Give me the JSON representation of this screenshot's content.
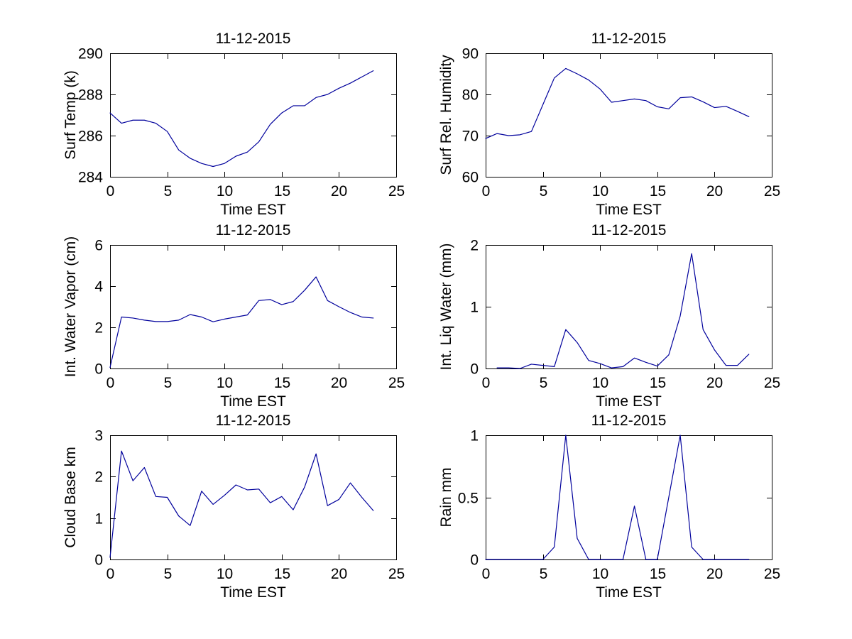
{
  "figure": {
    "background": "#ffffff",
    "line_color": "#00009c",
    "axis_color": "#000000",
    "text_color": "#000000"
  },
  "chart_data": [
    {
      "id": "surf-temp",
      "type": "line",
      "title": "11-12-2015",
      "xlabel": "Time EST",
      "ylabel": "Surf Temp (k)",
      "xlim": [
        0,
        25
      ],
      "ylim": [
        284,
        290
      ],
      "xticks": [
        0,
        5,
        10,
        15,
        20,
        25
      ],
      "yticks": [
        284,
        286,
        288,
        290
      ],
      "grid": false,
      "legend": null,
      "x": [
        0,
        1,
        2,
        3,
        4,
        5,
        6,
        7,
        8,
        9,
        10,
        11,
        12,
        13,
        14,
        15,
        16,
        17,
        18,
        19,
        20,
        21,
        22,
        23
      ],
      "y": [
        287.1,
        286.6,
        286.75,
        286.75,
        286.6,
        286.2,
        285.3,
        284.9,
        284.65,
        284.5,
        284.65,
        285.0,
        285.2,
        285.7,
        286.55,
        287.1,
        287.45,
        287.45,
        287.85,
        288.0,
        288.3,
        288.55,
        288.85,
        289.15
      ]
    },
    {
      "id": "surf-rel-humidity",
      "type": "line",
      "title": "11-12-2015",
      "xlabel": "Time EST",
      "ylabel": "Surf Rel. Humidity",
      "xlim": [
        0,
        25
      ],
      "ylim": [
        60,
        90
      ],
      "xticks": [
        0,
        5,
        10,
        15,
        20,
        25
      ],
      "yticks": [
        60,
        70,
        80,
        90
      ],
      "grid": false,
      "legend": null,
      "x": [
        0,
        1,
        2,
        3,
        4,
        5,
        6,
        7,
        8,
        9,
        10,
        11,
        12,
        13,
        14,
        15,
        16,
        17,
        18,
        19,
        20,
        21,
        22,
        23
      ],
      "y": [
        69.3,
        70.5,
        70.0,
        70.2,
        71.0,
        77.5,
        84.0,
        86.3,
        85.0,
        83.5,
        81.3,
        78.1,
        78.5,
        78.9,
        78.5,
        77.0,
        76.5,
        79.2,
        79.4,
        78.2,
        76.8,
        77.1,
        75.9,
        74.6
      ]
    },
    {
      "id": "int-water-vapor",
      "type": "line",
      "title": "11-12-2015",
      "xlabel": "Time EST",
      "ylabel": "Int. Water Vapor (cm)",
      "xlim": [
        0,
        25
      ],
      "ylim": [
        0,
        6
      ],
      "xticks": [
        0,
        5,
        10,
        15,
        20,
        25
      ],
      "yticks": [
        0,
        2,
        4,
        6
      ],
      "grid": false,
      "legend": null,
      "x": [
        0,
        1,
        2,
        3,
        4,
        5,
        6,
        7,
        8,
        9,
        10,
        11,
        12,
        13,
        14,
        15,
        16,
        17,
        18,
        19,
        20,
        21,
        22,
        23
      ],
      "y": [
        0.05,
        2.5,
        2.45,
        2.35,
        2.28,
        2.28,
        2.35,
        2.62,
        2.5,
        2.27,
        2.4,
        2.5,
        2.6,
        3.3,
        3.35,
        3.1,
        3.25,
        3.8,
        4.45,
        3.3,
        3.0,
        2.72,
        2.5,
        2.45
      ]
    },
    {
      "id": "int-liq-water",
      "type": "line",
      "title": "11-12-2015",
      "xlabel": "Time EST",
      "ylabel": "Int. Liq Water (mm)",
      "xlim": [
        0,
        25
      ],
      "ylim": [
        0,
        2
      ],
      "xticks": [
        0,
        5,
        10,
        15,
        20,
        25
      ],
      "yticks": [
        0,
        1,
        2
      ],
      "grid": false,
      "legend": null,
      "x": [
        1,
        2,
        3,
        4,
        5,
        6,
        7,
        8,
        9,
        10,
        11,
        12,
        13,
        14,
        15,
        16,
        17,
        18,
        19,
        20,
        21,
        22,
        23
      ],
      "y": [
        0.01,
        0.01,
        0.0,
        0.07,
        0.05,
        0.03,
        0.63,
        0.42,
        0.13,
        0.08,
        0.01,
        0.03,
        0.17,
        0.1,
        0.04,
        0.22,
        0.85,
        1.86,
        0.63,
        0.3,
        0.05,
        0.05,
        0.23
      ]
    },
    {
      "id": "cloud-base",
      "type": "line",
      "title": "11-12-2015",
      "xlabel": "Time EST",
      "ylabel": "Cloud Base km",
      "xlim": [
        0,
        25
      ],
      "ylim": [
        0,
        3
      ],
      "xticks": [
        0,
        5,
        10,
        15,
        20,
        25
      ],
      "yticks": [
        0,
        1,
        2,
        3
      ],
      "grid": false,
      "legend": null,
      "x": [
        0,
        1,
        2,
        3,
        4,
        5,
        6,
        7,
        8,
        9,
        10,
        11,
        12,
        13,
        14,
        15,
        16,
        17,
        18,
        19,
        20,
        21,
        22,
        23
      ],
      "y": [
        0.05,
        2.62,
        1.9,
        2.22,
        1.52,
        1.5,
        1.05,
        0.82,
        1.65,
        1.33,
        1.55,
        1.8,
        1.68,
        1.7,
        1.37,
        1.52,
        1.2,
        1.75,
        2.55,
        1.3,
        1.45,
        1.85,
        1.5,
        1.18
      ]
    },
    {
      "id": "rain",
      "type": "line",
      "title": "11-12-2015",
      "xlabel": "Time EST",
      "ylabel": "Rain mm",
      "xlim": [
        0,
        25
      ],
      "ylim": [
        0,
        1
      ],
      "xticks": [
        0,
        5,
        10,
        15,
        20,
        25
      ],
      "yticks": [
        0,
        0.5,
        1
      ],
      "grid": false,
      "legend": null,
      "x": [
        0,
        1,
        2,
        3,
        4,
        5,
        6,
        7,
        8,
        9,
        10,
        11,
        12,
        13,
        14,
        15,
        16,
        17,
        18,
        19,
        20,
        21,
        22,
        23
      ],
      "y": [
        0,
        0,
        0,
        0,
        0,
        0,
        0.1,
        1.0,
        0.17,
        0,
        0,
        0,
        0,
        0.43,
        0,
        0,
        0.5,
        1.0,
        0.1,
        0,
        0,
        0,
        0,
        0
      ]
    }
  ]
}
